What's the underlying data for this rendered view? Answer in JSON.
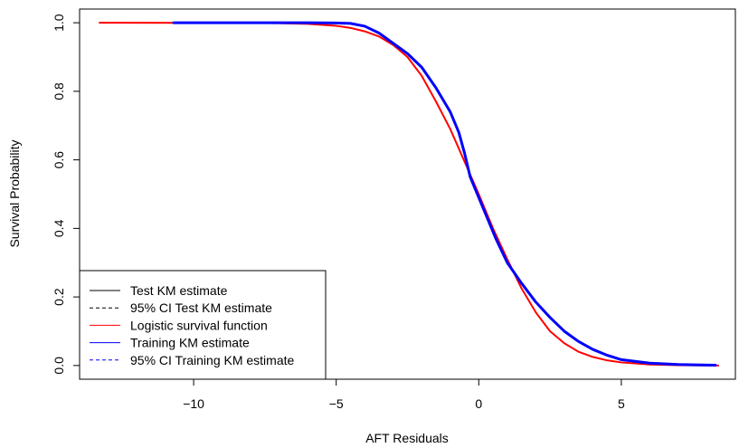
{
  "chart_data": {
    "type": "line",
    "title": "",
    "xlabel": "AFT Residuals",
    "ylabel": "Survival Probability",
    "xlim": [
      -14,
      9
    ],
    "ylim": [
      -0.04,
      1.04
    ],
    "xticks": [
      -10,
      -5,
      0,
      5
    ],
    "xtick_labels": [
      "−10",
      "−5",
      "0",
      "5"
    ],
    "yticks": [
      0.0,
      0.2,
      0.4,
      0.6,
      0.8,
      1.0
    ],
    "ytick_labels": [
      "0.0",
      "0.2",
      "0.4",
      "0.6",
      "0.8",
      "1.0"
    ],
    "grid": false,
    "legend_position": "bottom-left",
    "legend": [
      {
        "label": "Test KM estimate",
        "color": "#000000",
        "dash": "solid"
      },
      {
        "label": "95% CI Test KM estimate",
        "color": "#000000",
        "dash": "dashed"
      },
      {
        "label": "Logistic survival function",
        "color": "#ff0000",
        "dash": "solid"
      },
      {
        "label": "Training KM estimate",
        "color": "#0000ff",
        "dash": "solid"
      },
      {
        "label": "95% CI Training KM estimate",
        "color": "#0000ff",
        "dash": "dashed"
      }
    ],
    "series": [
      {
        "name": "Logistic survival function",
        "color": "#ff0000",
        "width": 2,
        "x": [
          -13.3,
          -10,
          -8,
          -7,
          -6,
          -5,
          -4.5,
          -4,
          -3.5,
          -3,
          -2.5,
          -2,
          -1.5,
          -1,
          -0.5,
          0,
          0.5,
          1,
          1.5,
          2,
          2.5,
          3,
          3.5,
          4,
          4.5,
          5,
          6,
          7,
          8.4
        ],
        "y": [
          1.0,
          0.9999,
          0.9996,
          0.9988,
          0.9968,
          0.991,
          0.985,
          0.975,
          0.96,
          0.935,
          0.9,
          0.845,
          0.77,
          0.69,
          0.595,
          0.5,
          0.4,
          0.31,
          0.225,
          0.155,
          0.1,
          0.065,
          0.04,
          0.025,
          0.015,
          0.009,
          0.003,
          0.001,
          0.0
        ]
      },
      {
        "name": "Training KM estimate",
        "color": "#0000ff",
        "width": 3,
        "x": [
          -10.7,
          -8,
          -6,
          -5,
          -4.5,
          -4,
          -3.5,
          -3,
          -2.5,
          -2,
          -1.5,
          -1,
          -0.7,
          -0.5,
          -0.3,
          0,
          0.3,
          0.6,
          1,
          1.5,
          2,
          2.5,
          3,
          3.5,
          4,
          4.5,
          5,
          6,
          7,
          8.3
        ],
        "y": [
          1.0,
          1.0,
          1.0,
          0.9995,
          0.998,
          0.99,
          0.97,
          0.94,
          0.91,
          0.87,
          0.81,
          0.74,
          0.68,
          0.62,
          0.55,
          0.49,
          0.43,
          0.37,
          0.3,
          0.24,
          0.185,
          0.14,
          0.1,
          0.07,
          0.047,
          0.03,
          0.017,
          0.007,
          0.003,
          0.001
        ]
      }
    ]
  }
}
